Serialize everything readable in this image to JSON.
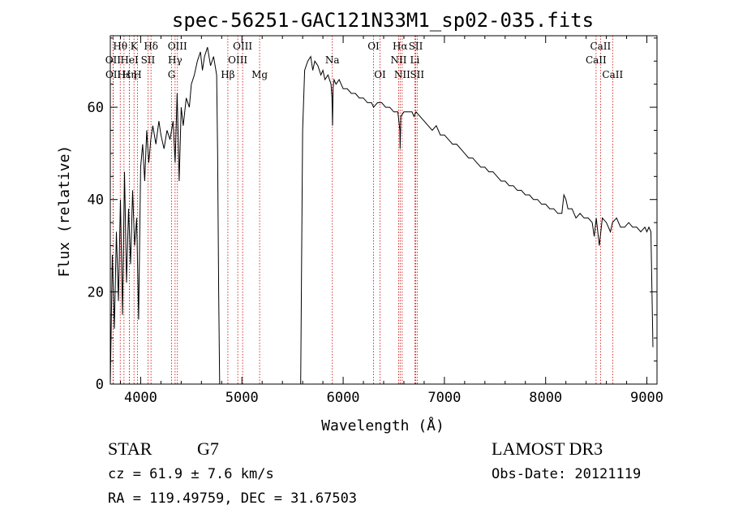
{
  "chart_data": {
    "type": "line",
    "title": "spec-56251-GAC121N33M1_sp02-035.fits",
    "xlabel": "Wavelength (Å)",
    "ylabel": "Flux (relative)",
    "xlim": [
      3700,
      9100
    ],
    "ylim": [
      0,
      75.5
    ],
    "x_ticks": [
      4000,
      5000,
      6000,
      7000,
      8000,
      9000
    ],
    "x_tick_labels": [
      "4000",
      "5000",
      "6000",
      "7000",
      "8000",
      "9000"
    ],
    "y_ticks": [
      0,
      20,
      40,
      60
    ],
    "y_tick_labels": [
      "0",
      "20",
      "40",
      "60"
    ],
    "grid": false,
    "series": [
      {
        "x": [
          3700,
          3720,
          3740,
          3760,
          3780,
          3800,
          3820,
          3840,
          3860,
          3880,
          3900,
          3920,
          3940,
          3960,
          3980,
          4000,
          4020,
          4040,
          4060,
          4080,
          4100,
          4120,
          4150,
          4180,
          4200,
          4230,
          4260,
          4290,
          4320,
          4340,
          4360,
          4380,
          4400,
          4420,
          4450,
          4480,
          4500,
          4530,
          4560,
          4590,
          4610,
          4630,
          4660,
          4690,
          4720,
          4750,
          4760,
          4770,
          4780,
          5580,
          5590,
          5600,
          5620,
          5650,
          5680,
          5700,
          5720,
          5750,
          5780,
          5800,
          5820,
          5850,
          5880,
          5890,
          5895,
          5900,
          5910,
          5930,
          5960,
          6000,
          6040,
          6080,
          6120,
          6160,
          6200,
          6240,
          6280,
          6300,
          6340,
          6380,
          6420,
          6460,
          6500,
          6540,
          6560,
          6563,
          6570,
          6600,
          6640,
          6680,
          6700,
          6720,
          6760,
          6800,
          6840,
          6880,
          6920,
          6960,
          7000,
          7040,
          7080,
          7120,
          7160,
          7200,
          7240,
          7280,
          7320,
          7360,
          7400,
          7440,
          7480,
          7520,
          7560,
          7600,
          7640,
          7680,
          7720,
          7760,
          7800,
          7840,
          7880,
          7920,
          7960,
          8000,
          8040,
          8080,
          8120,
          8160,
          8180,
          8200,
          8220,
          8260,
          8300,
          8340,
          8380,
          8420,
          8460,
          8480,
          8500,
          8530,
          8560,
          8600,
          8640,
          8660,
          8700,
          8740,
          8780,
          8820,
          8860,
          8900,
          8940,
          8980,
          9000,
          9020,
          9040,
          9050,
          9060
        ],
        "y": [
          0,
          28,
          12,
          33,
          18,
          40,
          15,
          46,
          22,
          38,
          26,
          42,
          30,
          36,
          14,
          47,
          52,
          44,
          55,
          48,
          53,
          56,
          52,
          57,
          54,
          51,
          55,
          53,
          57,
          48,
          63,
          44,
          60,
          56,
          62,
          60,
          65,
          67,
          70,
          72,
          68,
          71,
          73,
          69,
          71,
          67,
          50,
          20,
          0,
          0,
          28,
          55,
          68,
          70,
          71,
          68,
          70,
          69,
          67,
          68,
          66,
          67,
          65,
          62,
          56,
          64,
          66,
          65,
          66,
          64,
          64,
          63,
          63,
          62,
          62,
          61,
          61,
          60,
          61,
          61,
          60,
          60,
          59,
          59,
          55,
          51,
          58,
          59,
          59,
          59,
          58,
          59,
          58,
          57,
          56,
          55,
          56,
          54,
          54,
          53,
          52,
          52,
          51,
          50,
          49,
          49,
          48,
          47,
          47,
          46,
          46,
          45,
          44,
          44,
          43,
          43,
          42,
          42,
          41,
          41,
          40,
          40,
          39,
          39,
          38,
          38,
          37,
          37,
          41,
          40,
          38,
          38,
          36,
          37,
          36,
          36,
          35,
          32,
          36,
          30,
          36,
          35,
          33,
          35,
          36,
          34,
          34,
          35,
          34,
          34,
          33,
          34,
          33,
          34,
          33,
          20,
          8
        ]
      }
    ],
    "lines": [
      {
        "label": "Hθ",
        "x": 3798,
        "row": 1
      },
      {
        "label": "K",
        "x": 3934,
        "row": 1
      },
      {
        "label": "Hδ",
        "x": 4102,
        "row": 1
      },
      {
        "label": "OIII",
        "x": 4363,
        "row": 1
      },
      {
        "label": "OIII",
        "x": 5007,
        "row": 1
      },
      {
        "label": "OI",
        "x": 6300,
        "row": 1
      },
      {
        "label": "Hα",
        "x": 6563,
        "row": 1
      },
      {
        "label": "SII",
        "x": 6717,
        "row": 1
      },
      {
        "label": "CaII",
        "x": 8542,
        "row": 1
      },
      {
        "label": "OII",
        "x": 3727,
        "row": 2
      },
      {
        "label": "HeI",
        "x": 3889,
        "row": 2
      },
      {
        "label": "SII",
        "x": 4072,
        "row": 2
      },
      {
        "label": "Hγ",
        "x": 4340,
        "row": 2
      },
      {
        "label": "OIII",
        "x": 4959,
        "row": 2
      },
      {
        "label": "Na",
        "x": 5893,
        "row": 2
      },
      {
        "label": "NII",
        "x": 6548,
        "row": 2
      },
      {
        "label": "Li",
        "x": 6708,
        "row": 2
      },
      {
        "label": "CaII",
        "x": 8498,
        "row": 2
      },
      {
        "label": "OII",
        "x": 3729,
        "row": 3
      },
      {
        "label": "Hε",
        "x": 3835,
        "row": 3
      },
      {
        "label": "Hη",
        "x": 3889,
        "row": 3
      },
      {
        "label": "H",
        "x": 3968,
        "row": 3
      },
      {
        "label": "G",
        "x": 4305,
        "row": 3
      },
      {
        "label": "Hβ",
        "x": 4861,
        "row": 3
      },
      {
        "label": "Mg",
        "x": 5175,
        "row": 3
      },
      {
        "label": "OI",
        "x": 6364,
        "row": 3
      },
      {
        "label": "NII",
        "x": 6583,
        "row": 3
      },
      {
        "label": "SII",
        "x": 6731,
        "row": 3
      },
      {
        "label": "CaII",
        "x": 8662,
        "row": 3
      }
    ]
  },
  "info": {
    "class": "STAR",
    "subclass": "G7",
    "survey": "LAMOST DR3",
    "cz": "cz = 61.9 ± 7.6 km/s",
    "obs_date": "Obs-Date: 20121119",
    "coords": "RA = 119.49759, DEC =  31.67503"
  },
  "colors": {
    "spectrum": "#000000",
    "line_marker": "#cc0000",
    "axes": "#000000"
  }
}
